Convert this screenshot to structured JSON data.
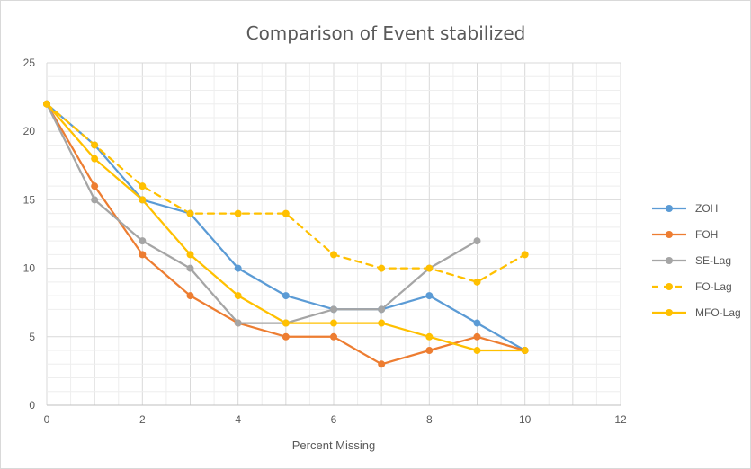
{
  "chart_data": {
    "type": "line",
    "title": "Comparison of Event stabilized",
    "xlabel": "Percent Missing",
    "ylabel": "",
    "xlim": [
      0,
      12
    ],
    "ylim": [
      0,
      25
    ],
    "xticks": [
      0,
      2,
      4,
      6,
      8,
      10,
      12
    ],
    "yticks": [
      0,
      5,
      10,
      15,
      20,
      25
    ],
    "grid": true,
    "legend_position": "right",
    "series": [
      {
        "name": "ZOH",
        "color": "#5b9bd5",
        "dashed": false,
        "x": [
          0,
          1,
          2,
          3,
          4,
          5,
          6,
          7,
          8,
          9,
          10
        ],
        "y": [
          22,
          19,
          15,
          14,
          10,
          8,
          7,
          7,
          8,
          6,
          4
        ]
      },
      {
        "name": "FOH",
        "color": "#ed7d31",
        "dashed": false,
        "x": [
          0,
          1,
          2,
          3,
          4,
          5,
          6,
          7,
          8,
          9,
          10
        ],
        "y": [
          22,
          16,
          11,
          8,
          6,
          5,
          5,
          3,
          4,
          5,
          4
        ]
      },
      {
        "name": "SE-Lag",
        "color": "#a5a5a5",
        "dashed": false,
        "x": [
          0,
          1,
          2,
          3,
          4,
          5,
          6,
          7,
          8,
          9
        ],
        "y": [
          22,
          15,
          12,
          10,
          6,
          6,
          7,
          7,
          10,
          12
        ]
      },
      {
        "name": "FO-Lag",
        "color": "#ffc000",
        "dashed": true,
        "x": [
          0,
          1,
          2,
          3,
          4,
          5,
          6,
          7,
          8,
          9,
          10
        ],
        "y": [
          22,
          19,
          16,
          14,
          14,
          14,
          11,
          10,
          10,
          9,
          11
        ]
      },
      {
        "name": "MFO-Lag",
        "color": "#ffc000",
        "dashed": false,
        "x": [
          0,
          1,
          2,
          3,
          4,
          5,
          6,
          7,
          8,
          9,
          10
        ],
        "y": [
          22,
          18,
          15,
          11,
          8,
          6,
          6,
          6,
          5,
          4,
          4
        ]
      }
    ]
  }
}
